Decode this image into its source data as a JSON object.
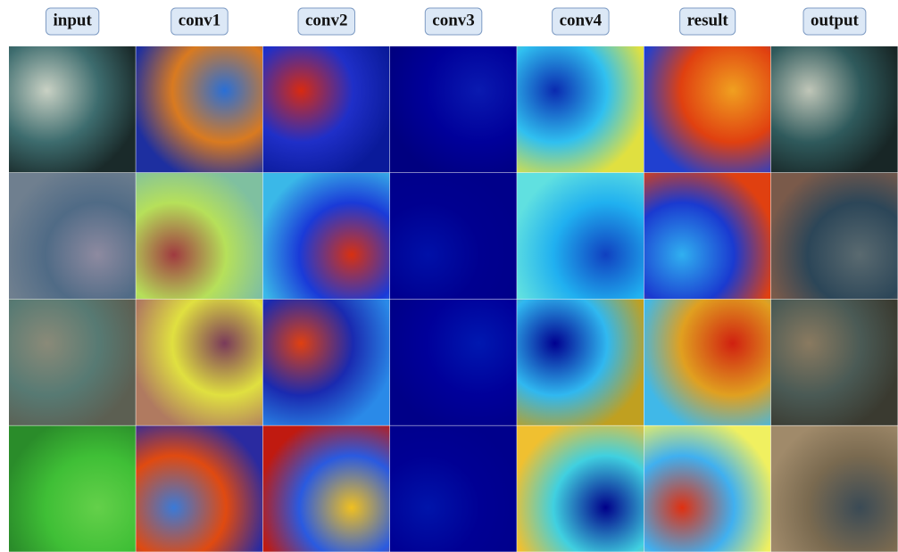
{
  "columns": [
    "input",
    "conv1",
    "conv2",
    "conv3",
    "conv4",
    "result",
    "output"
  ]
}
